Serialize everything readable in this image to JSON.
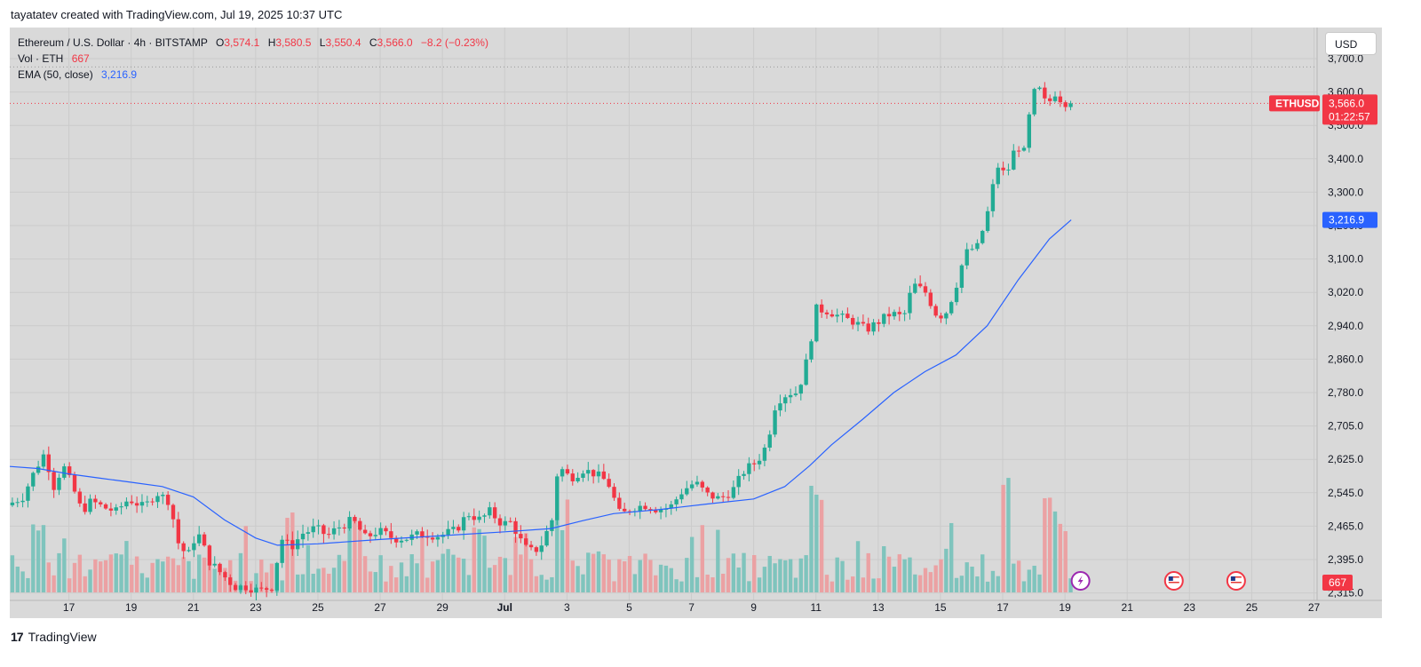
{
  "header": {
    "attribution": "tayatatev created with TradingView.com, Jul 19, 2025 10:37 UTC"
  },
  "legend": {
    "symbol": "Ethereum / U.S. Dollar · 4h · BITSTAMP",
    "o_label": "O",
    "o_value": "3,574.1",
    "h_label": "H",
    "h_value": "3,580.5",
    "l_label": "L",
    "l_value": "3,550.4",
    "c_label": "C",
    "c_value": "3,566.0",
    "change": "−8.2 (−0.23%)",
    "vol_label": "Vol · ETH",
    "vol_value": "667",
    "ema_label": "EMA (50, close)",
    "ema_value": "3,216.9"
  },
  "toolbar": {
    "currency": "USD"
  },
  "footer": {
    "brand": "TradingView"
  },
  "chart_data": {
    "type": "candlestick",
    "symbol": "ETHUSD",
    "y_ticks": [
      {
        "value": 3700,
        "label": "3,700.0"
      },
      {
        "value": 3600,
        "label": "3,600.0"
      },
      {
        "value": 3500,
        "label": "3,500.0"
      },
      {
        "value": 3400,
        "label": "3,400.0"
      },
      {
        "value": 3300,
        "label": "3,300.0"
      },
      {
        "value": 3200,
        "label": "3,200.0"
      },
      {
        "value": 3100,
        "label": "3,100.0"
      },
      {
        "value": 3020,
        "label": "3,020.0"
      },
      {
        "value": 2940,
        "label": "2,940.0"
      },
      {
        "value": 2860,
        "label": "2,860.0"
      },
      {
        "value": 2780,
        "label": "2,780.0"
      },
      {
        "value": 2705,
        "label": "2,705.0"
      },
      {
        "value": 2625,
        "label": "2,625.0"
      },
      {
        "value": 2545,
        "label": "2,545.0"
      },
      {
        "value": 2465,
        "label": "2,465.0"
      },
      {
        "value": 2395,
        "label": "2,395.0"
      },
      {
        "value": 2315,
        "label": "2,315.0"
      }
    ],
    "x_ticks": [
      {
        "day": 17,
        "label": "17"
      },
      {
        "day": 19,
        "label": "19"
      },
      {
        "day": 21,
        "label": "21"
      },
      {
        "day": 23,
        "label": "23"
      },
      {
        "day": 25,
        "label": "25"
      },
      {
        "day": 27,
        "label": "27"
      },
      {
        "day": 29,
        "label": "29"
      },
      {
        "day": 31,
        "label": "Jul"
      },
      {
        "day": 33,
        "label": "3"
      },
      {
        "day": 35,
        "label": "5"
      },
      {
        "day": 37,
        "label": "7"
      },
      {
        "day": 39,
        "label": "9"
      },
      {
        "day": 41,
        "label": "11"
      },
      {
        "day": 43,
        "label": "13"
      },
      {
        "day": 45,
        "label": "15"
      },
      {
        "day": 47,
        "label": "17"
      },
      {
        "day": 49,
        "label": "19"
      },
      {
        "day": 51,
        "label": "21"
      },
      {
        "day": 53,
        "label": "23"
      },
      {
        "day": 55,
        "label": "25"
      },
      {
        "day": 57,
        "label": "27"
      }
    ],
    "x_range_days": [
      15.1,
      57.1
    ],
    "anchors": [
      [
        15.1,
        2515
      ],
      [
        15.6,
        2535
      ],
      [
        16.0,
        2600
      ],
      [
        16.3,
        2640
      ],
      [
        16.6,
        2560
      ],
      [
        16.9,
        2610
      ],
      [
        17.2,
        2560
      ],
      [
        17.5,
        2500
      ],
      [
        17.8,
        2525
      ],
      [
        18.2,
        2510
      ],
      [
        18.6,
        2500
      ],
      [
        19.0,
        2530
      ],
      [
        19.5,
        2510
      ],
      [
        19.9,
        2545
      ],
      [
        20.3,
        2525
      ],
      [
        20.6,
        2430
      ],
      [
        20.9,
        2400
      ],
      [
        21.2,
        2455
      ],
      [
        21.6,
        2390
      ],
      [
        22.0,
        2360
      ],
      [
        22.4,
        2330
      ],
      [
        22.8,
        2330
      ],
      [
        23.2,
        2320
      ],
      [
        23.6,
        2330
      ],
      [
        23.9,
        2440
      ],
      [
        24.2,
        2420
      ],
      [
        24.6,
        2450
      ],
      [
        25.0,
        2460
      ],
      [
        25.4,
        2445
      ],
      [
        25.8,
        2465
      ],
      [
        26.2,
        2480
      ],
      [
        26.6,
        2440
      ],
      [
        27.0,
        2455
      ],
      [
        27.5,
        2440
      ],
      [
        28.0,
        2440
      ],
      [
        28.5,
        2450
      ],
      [
        29.0,
        2445
      ],
      [
        29.5,
        2455
      ],
      [
        29.9,
        2495
      ],
      [
        30.3,
        2480
      ],
      [
        30.6,
        2500
      ],
      [
        31.0,
        2470
      ],
      [
        31.3,
        2475
      ],
      [
        31.7,
        2420
      ],
      [
        32.0,
        2410
      ],
      [
        32.3,
        2430
      ],
      [
        32.6,
        2480
      ],
      [
        32.8,
        2610
      ],
      [
        33.2,
        2580
      ],
      [
        33.6,
        2600
      ],
      [
        34.0,
        2590
      ],
      [
        34.4,
        2570
      ],
      [
        34.8,
        2490
      ],
      [
        35.2,
        2510
      ],
      [
        35.6,
        2515
      ],
      [
        36.0,
        2505
      ],
      [
        36.4,
        2510
      ],
      [
        36.8,
        2550
      ],
      [
        37.2,
        2570
      ],
      [
        37.6,
        2540
      ],
      [
        38.0,
        2530
      ],
      [
        38.4,
        2550
      ],
      [
        38.8,
        2600
      ],
      [
        39.2,
        2620
      ],
      [
        39.5,
        2660
      ],
      [
        39.8,
        2760
      ],
      [
        40.2,
        2780
      ],
      [
        40.5,
        2780
      ],
      [
        40.8,
        2860
      ],
      [
        41.1,
        2980
      ],
      [
        41.5,
        2975
      ],
      [
        41.9,
        2960
      ],
      [
        42.3,
        2950
      ],
      [
        42.7,
        2930
      ],
      [
        43.1,
        2950
      ],
      [
        43.5,
        2970
      ],
      [
        43.9,
        2960
      ],
      [
        44.2,
        3040
      ],
      [
        44.6,
        3020
      ],
      [
        45.0,
        2960
      ],
      [
        45.3,
        2975
      ],
      [
        45.6,
        3040
      ],
      [
        45.9,
        3120
      ],
      [
        46.3,
        3140
      ],
      [
        46.6,
        3240
      ],
      [
        46.9,
        3380
      ],
      [
        47.2,
        3350
      ],
      [
        47.5,
        3440
      ],
      [
        47.8,
        3420
      ],
      [
        48.0,
        3580
      ],
      [
        48.2,
        3620
      ],
      [
        48.5,
        3560
      ],
      [
        48.8,
        3600
      ],
      [
        49.0,
        3566
      ]
    ],
    "candle_start_day": 15.1,
    "candle_end_day": 49.2,
    "ema50": [
      [
        15.1,
        2608
      ],
      [
        16.0,
        2603
      ],
      [
        17.0,
        2590
      ],
      [
        18.0,
        2580
      ],
      [
        19.0,
        2570
      ],
      [
        20.0,
        2560
      ],
      [
        21.0,
        2535
      ],
      [
        22.0,
        2480
      ],
      [
        23.0,
        2440
      ],
      [
        23.7,
        2425
      ],
      [
        25.0,
        2428
      ],
      [
        27.0,
        2437
      ],
      [
        29.0,
        2445
      ],
      [
        31.0,
        2453
      ],
      [
        32.5,
        2460
      ],
      [
        33.5,
        2478
      ],
      [
        34.5,
        2495
      ],
      [
        36.0,
        2505
      ],
      [
        37.5,
        2518
      ],
      [
        39.0,
        2530
      ],
      [
        40.0,
        2560
      ],
      [
        40.8,
        2610
      ],
      [
        41.5,
        2660
      ],
      [
        42.5,
        2720
      ],
      [
        43.5,
        2780
      ],
      [
        44.5,
        2830
      ],
      [
        45.5,
        2870
      ],
      [
        46.5,
        2940
      ],
      [
        47.5,
        3050
      ],
      [
        48.5,
        3160
      ],
      [
        49.2,
        3217
      ]
    ],
    "ohlc": {
      "open": 3574.1,
      "high": 3580.5,
      "low": 3550.4,
      "close": 3566.0
    },
    "last_price": {
      "symbol": "ETHUSD",
      "value": 3566.0,
      "label": "3,566.0",
      "countdown": "01:22:57"
    },
    "ema_value": {
      "value": 3216.9,
      "label": "3,216.9"
    },
    "volume_last": {
      "value": 667,
      "label": "667"
    },
    "volume_spikes": [
      [
        47.0,
        0.9
      ],
      [
        48.3,
        0.74
      ],
      [
        48.7,
        0.64
      ],
      [
        40.9,
        0.84
      ],
      [
        32.8,
        0.7
      ],
      [
        15.9,
        0.58
      ],
      [
        24.0,
        0.66
      ],
      [
        26.1,
        0.55
      ],
      [
        30.1,
        0.5
      ]
    ],
    "colors": {
      "up": "#22ab94",
      "down": "#f23645",
      "ema": "#2962ff",
      "vol_up": "#7fc4bd",
      "vol_down": "#eba1a3",
      "background": "#d9d9d9"
    },
    "grid": true,
    "event_markers": [
      {
        "day": 49.5,
        "icon": "lightning-icon"
      },
      {
        "day": 52.5,
        "icon": "us-flag-icon"
      },
      {
        "day": 54.5,
        "icon": "us-flag-icon"
      }
    ]
  }
}
